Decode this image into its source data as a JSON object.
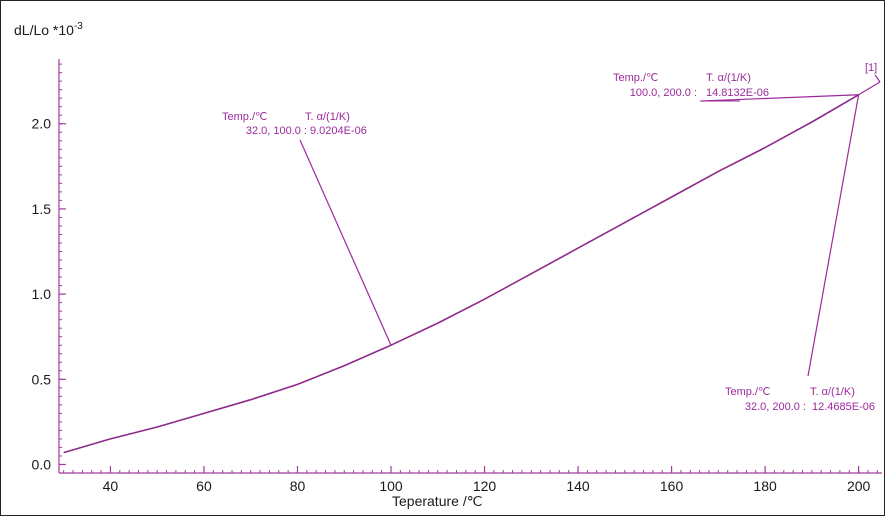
{
  "colors": {
    "axis": "#a23ca2",
    "curve": "#8c2a8c",
    "annotation": "#9c2a9c",
    "text": "#1a1a1a"
  },
  "chart_data": {
    "type": "line",
    "ylabel": "dL/Lo *10",
    "ylabel_exponent": "-3",
    "xlabel": "Teperature /℃",
    "xlim": [
      29,
      205
    ],
    "ylim": [
      -0.05,
      2.38
    ],
    "x_ticks": [
      40,
      60,
      80,
      100,
      120,
      140,
      160,
      180,
      200
    ],
    "y_ticks": [
      0.0,
      0.5,
      1.0,
      1.5,
      2.0
    ],
    "x_tick_labels": [
      "40",
      "60",
      "80",
      "100",
      "120",
      "140",
      "160",
      "180",
      "200"
    ],
    "y_tick_labels": [
      "0.0",
      "0.5",
      "1.0",
      "1.5",
      "2.0"
    ],
    "grid": false,
    "series": [
      {
        "x": [
          30,
          40,
          50,
          60,
          70,
          80,
          90,
          100,
          110,
          120,
          130,
          140,
          150,
          160,
          170,
          180,
          190,
          200
        ],
        "y": [
          0.07,
          0.15,
          0.22,
          0.3,
          0.38,
          0.47,
          0.58,
          0.7,
          0.83,
          0.97,
          1.12,
          1.27,
          1.42,
          1.57,
          1.72,
          1.86,
          2.01,
          2.17
        ]
      }
    ],
    "marker_label": "[1]",
    "annotations": [
      {
        "header_temp": "Temp./℃",
        "header_alpha": "T. α/(1/K)",
        "range": "32.0, 100.0 :",
        "value": "9.0204E-06",
        "point_x": 100,
        "point_y": 0.7
      },
      {
        "header_temp": "Temp./℃",
        "header_alpha": "T. α/(1/K)",
        "range": "100.0, 200.0 :",
        "value": "14.8132E-06",
        "point_x": 200,
        "point_y": 2.17
      },
      {
        "header_temp": "Temp./℃",
        "header_alpha": "T. α/(1/K)",
        "range": "32.0, 200.0 :",
        "value": "12.4685E-06",
        "point_x": 200,
        "point_y": 2.17
      }
    ]
  }
}
